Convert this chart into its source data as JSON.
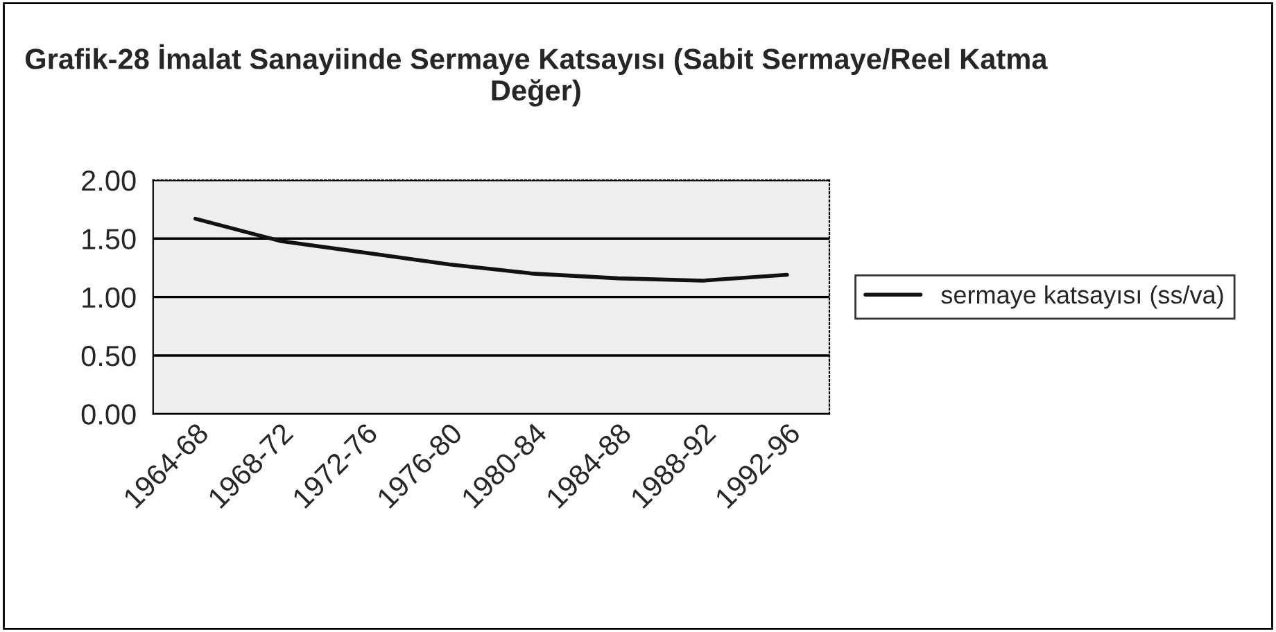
{
  "chart_data": {
    "type": "line",
    "title": "Grafik-28 İmalat Sanayiinde Sermaye Katsayısı (Sabit Sermaye/Reel Katma Değer)",
    "categories": [
      "1964-68",
      "1968-72",
      "1972-76",
      "1976-80",
      "1980-84",
      "1984-88",
      "1988-92",
      "1992-96"
    ],
    "series": [
      {
        "name": "sermaye katsayısı (ss/va)",
        "color": "#111111",
        "values": [
          1.67,
          1.48,
          1.38,
          1.28,
          1.2,
          1.16,
          1.14,
          1.19
        ]
      }
    ],
    "ylim": [
      0,
      2
    ],
    "yticks": [
      {
        "value": 0,
        "label": "0.00"
      },
      {
        "value": 0.5,
        "label": "0.50"
      },
      {
        "value": 1,
        "label": "1.00"
      },
      {
        "value": 1.5,
        "label": "1.50"
      },
      {
        "value": 2,
        "label": "2.00"
      }
    ],
    "grid": "y",
    "legend": "right",
    "marker": "none",
    "line_style": "solid"
  }
}
